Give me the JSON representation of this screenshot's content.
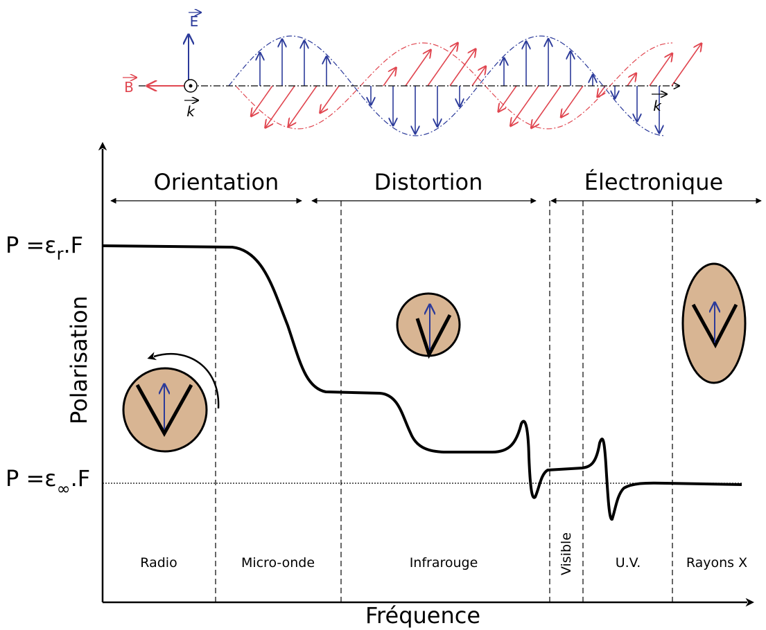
{
  "wave": {
    "e_label": "E",
    "b_label": "B",
    "k_left": "k",
    "k_right": "k"
  },
  "regions": {
    "orientation": "Orientation",
    "distortion": "Distortion",
    "electronique": "Électronique"
  },
  "levels": {
    "static": {
      "prefix": "P =ε",
      "sub": "r",
      "suffix": ".F"
    },
    "infinite": {
      "prefix": "P =ε",
      "sub": "∞",
      "suffix": ".F"
    }
  },
  "axes": {
    "y_label": "Polarisation",
    "x_label": "Fréquence"
  },
  "bands": {
    "radio": "Radio",
    "micro": "Micro-onde",
    "infra": "Infrarouge",
    "visible": "Visible",
    "uv": "U.V.",
    "xray": "Rayons X"
  }
}
